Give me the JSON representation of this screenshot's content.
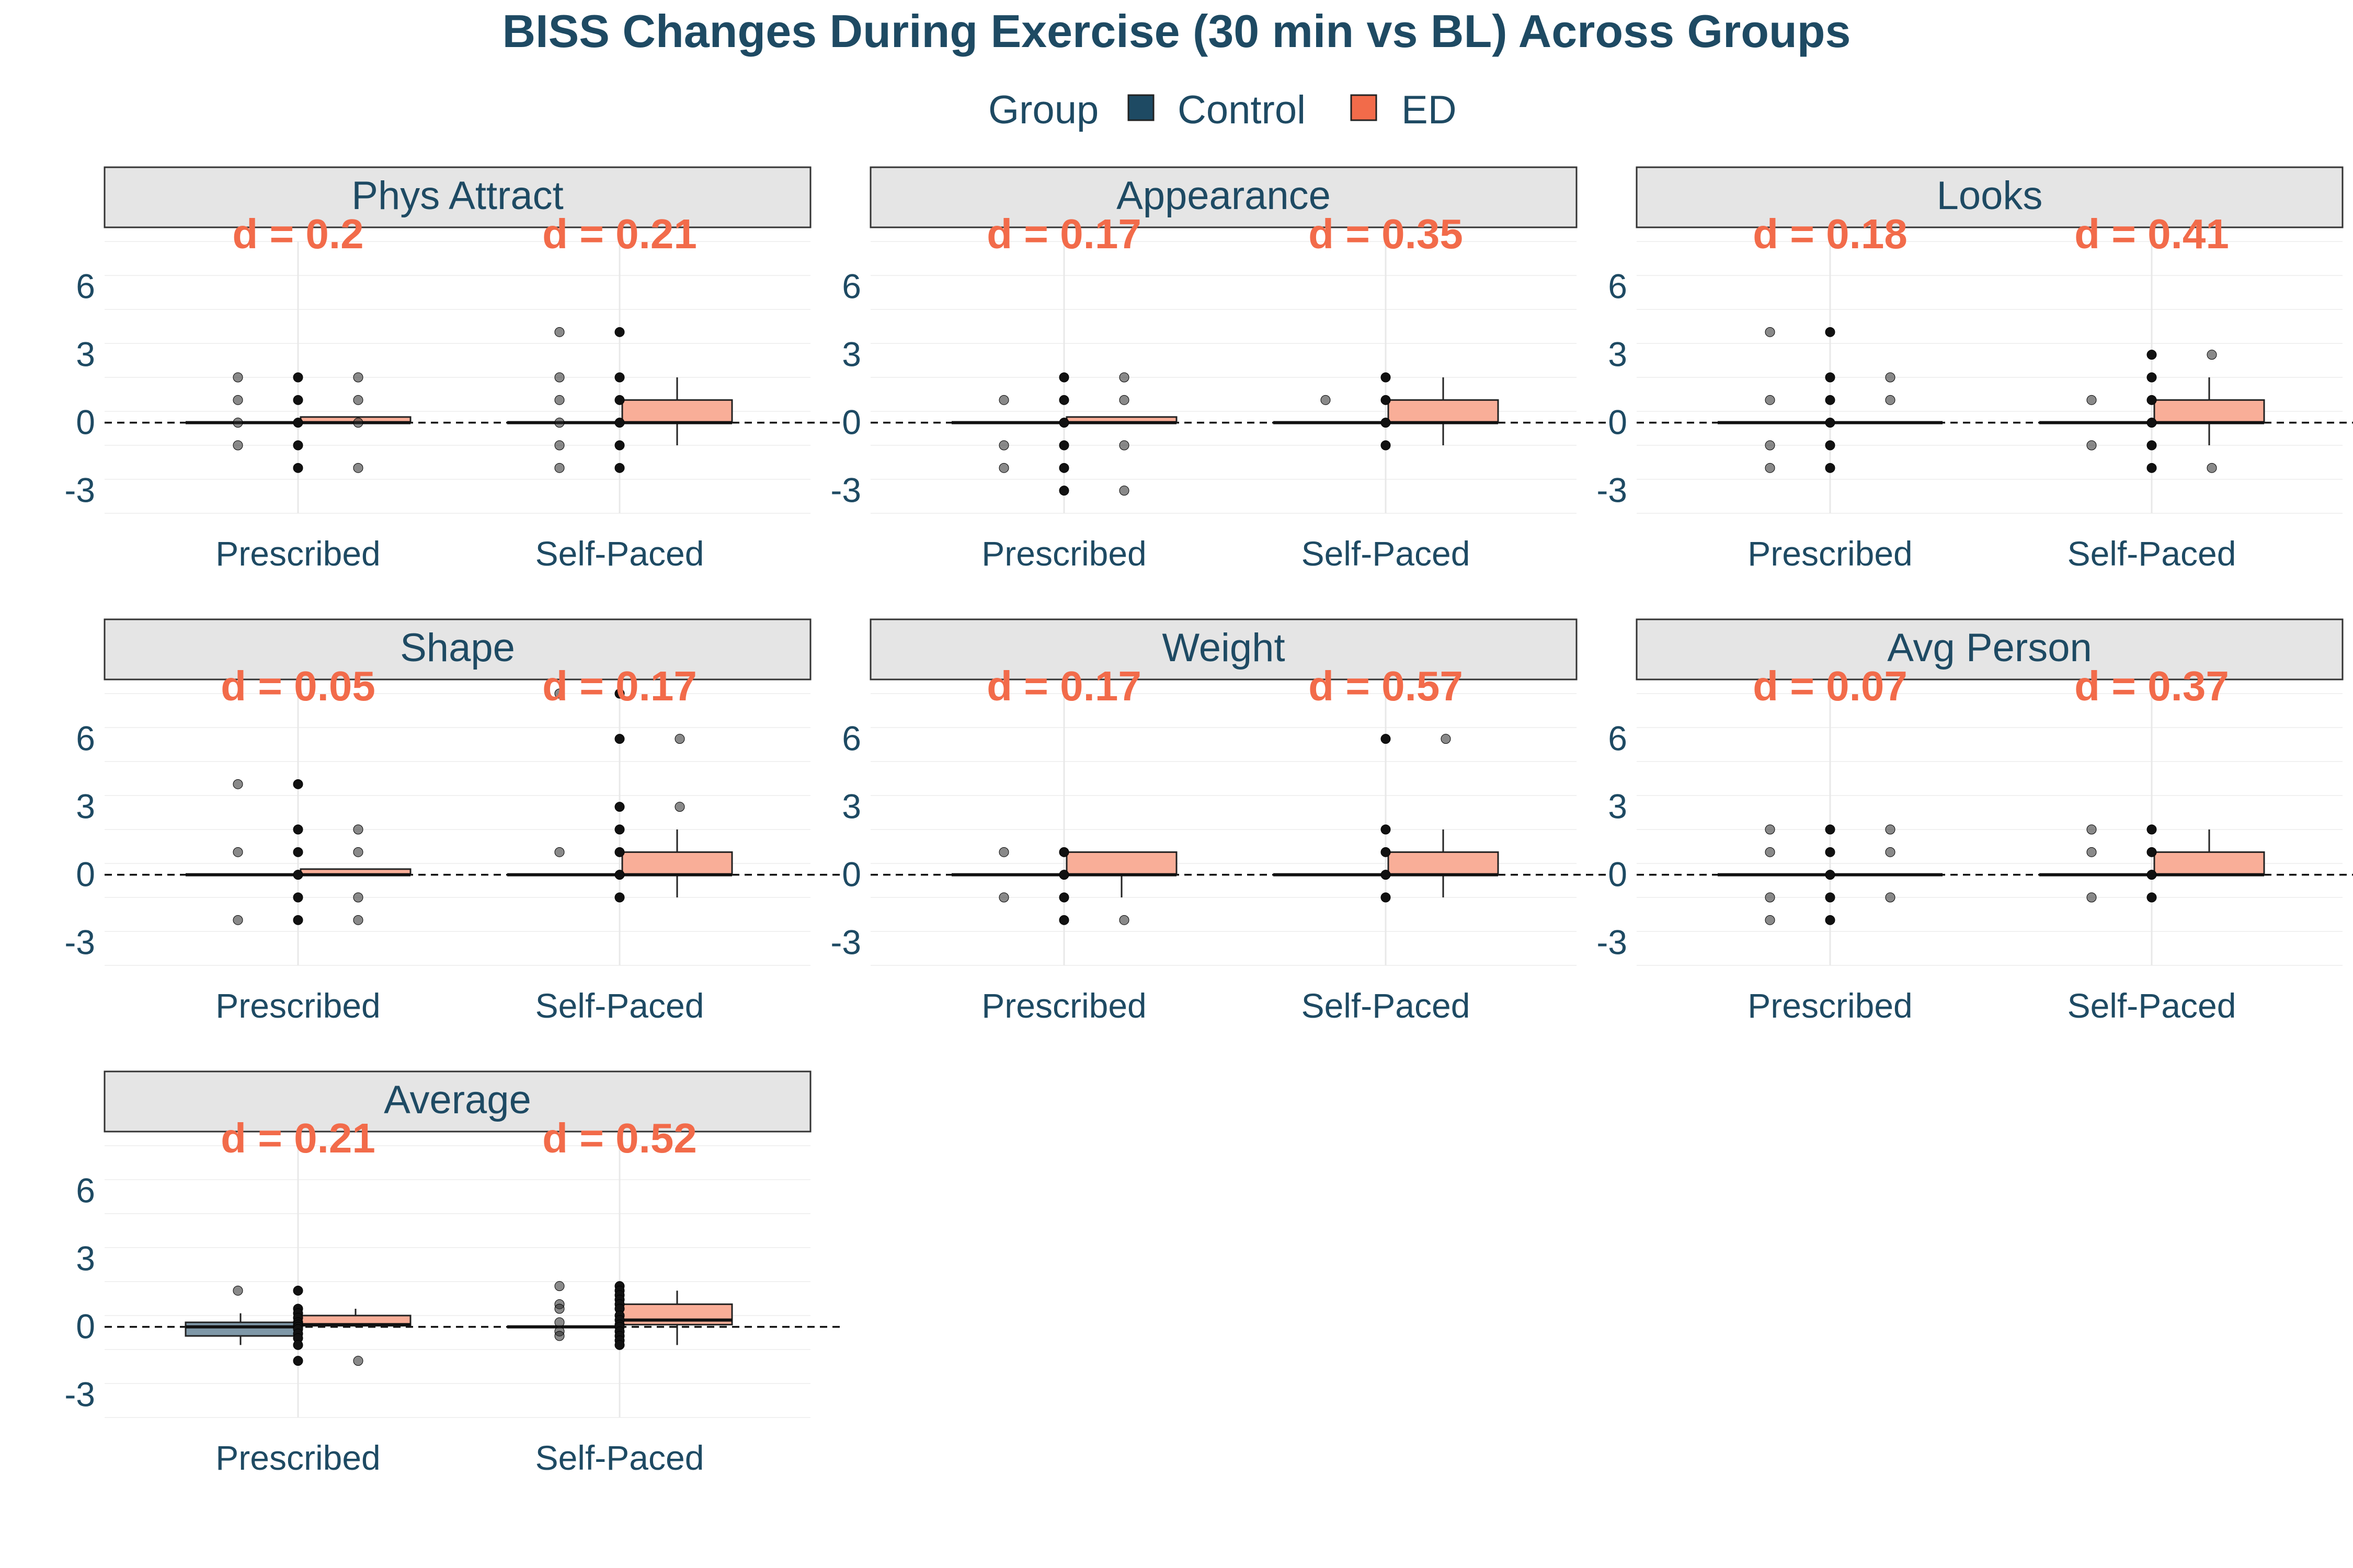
{
  "chart_data": {
    "type": "box",
    "title": "BISS Changes During Exercise (30 min vs BL) Across Groups",
    "legend": {
      "title": "Group",
      "position": "top",
      "items": [
        {
          "name": "Control",
          "color": "#1e4a63"
        },
        {
          "name": "ED",
          "color": "#f26b4a"
        }
      ]
    },
    "colors": {
      "control_fill": "#7f98a8",
      "ed_fill": "#f9ae98",
      "title": "#1e4a63",
      "annotation": "#f26b4a",
      "strip_bg": "#e5e5e5"
    },
    "y_ticks": [
      "6",
      "3",
      "0",
      "-3"
    ],
    "y_tick_values": [
      6,
      3,
      0,
      -3
    ],
    "ylim": [
      -4,
      8
    ],
    "reference_line": 0,
    "categories": [
      "Prescribed",
      "Self-Paced"
    ],
    "panels": [
      {
        "name": "Phys Attract",
        "effect_sizes": [
          "d = 0.2",
          "d = 0.21"
        ],
        "boxes": {
          "Prescribed": {
            "Control": {
              "q1": 0,
              "median": 0,
              "q3": 0,
              "low": 0,
              "high": 0
            },
            "ED": {
              "q1": 0,
              "median": 0,
              "q3": 0.25,
              "low": 0,
              "high": 0.25
            }
          },
          "Self-Paced": {
            "Control": {
              "q1": 0,
              "median": 0,
              "q3": 0,
              "low": 0,
              "high": 0
            },
            "ED": {
              "q1": 0,
              "median": 0,
              "q3": 1,
              "low": -1,
              "high": 2
            }
          }
        },
        "points": {
          "Prescribed": {
            "Control": [
              2,
              1,
              0,
              -1
            ],
            "Center": [
              2,
              1,
              0,
              -1,
              -2
            ],
            "ED": [
              2,
              1,
              0,
              -2
            ]
          },
          "Self-Paced": {
            "Control": [
              4,
              2,
              1,
              0,
              -1,
              -2
            ],
            "Center": [
              4,
              2,
              1,
              0,
              -1,
              -2
            ],
            "ED": []
          }
        }
      },
      {
        "name": "Appearance",
        "effect_sizes": [
          "d = 0.17",
          "d = 0.35"
        ],
        "boxes": {
          "Prescribed": {
            "Control": {
              "q1": 0,
              "median": 0,
              "q3": 0,
              "low": 0,
              "high": 0
            },
            "ED": {
              "q1": 0,
              "median": 0,
              "q3": 0.25,
              "low": 0,
              "high": 0.25
            }
          },
          "Self-Paced": {
            "Control": {
              "q1": 0,
              "median": 0,
              "q3": 0,
              "low": 0,
              "high": 0
            },
            "ED": {
              "q1": 0,
              "median": 0,
              "q3": 1,
              "low": -1,
              "high": 2
            }
          }
        },
        "points": {
          "Prescribed": {
            "Control": [
              1,
              -1,
              -2
            ],
            "Center": [
              2,
              1,
              0,
              -1,
              -2,
              -3
            ],
            "ED": [
              2,
              1,
              -1,
              -3
            ]
          },
          "Self-Paced": {
            "Control": [
              1
            ],
            "Center": [
              2,
              1,
              0,
              -1
            ],
            "ED": []
          }
        }
      },
      {
        "name": "Looks",
        "effect_sizes": [
          "d = 0.18",
          "d = 0.41"
        ],
        "boxes": {
          "Prescribed": {
            "Control": {
              "q1": 0,
              "median": 0,
              "q3": 0,
              "low": 0,
              "high": 0
            },
            "ED": {
              "q1": 0,
              "median": 0,
              "q3": 0,
              "low": 0,
              "high": 0
            }
          },
          "Self-Paced": {
            "Control": {
              "q1": 0,
              "median": 0,
              "q3": 0,
              "low": 0,
              "high": 0
            },
            "ED": {
              "q1": 0,
              "median": 0,
              "q3": 1,
              "low": -1,
              "high": 2
            }
          }
        },
        "points": {
          "Prescribed": {
            "Control": [
              4,
              1,
              -1,
              -2
            ],
            "Center": [
              4,
              2,
              1,
              0,
              -1,
              -2
            ],
            "ED": [
              2,
              1
            ]
          },
          "Self-Paced": {
            "Control": [
              1,
              -1
            ],
            "Center": [
              3,
              2,
              1,
              0,
              -1,
              -2
            ],
            "ED": [
              3,
              -2
            ]
          }
        }
      },
      {
        "name": "Shape",
        "effect_sizes": [
          "d = 0.05",
          "d = 0.17"
        ],
        "boxes": {
          "Prescribed": {
            "Control": {
              "q1": 0,
              "median": 0,
              "q3": 0,
              "low": 0,
              "high": 0
            },
            "ED": {
              "q1": 0,
              "median": 0,
              "q3": 0.25,
              "low": 0,
              "high": 0.25
            }
          },
          "Self-Paced": {
            "Control": {
              "q1": 0,
              "median": 0,
              "q3": 0,
              "low": 0,
              "high": 0
            },
            "ED": {
              "q1": 0,
              "median": 0,
              "q3": 1,
              "low": -1,
              "high": 2
            }
          }
        },
        "points": {
          "Prescribed": {
            "Control": [
              4,
              1,
              -2
            ],
            "Center": [
              4,
              2,
              1,
              0,
              -1,
              -2
            ],
            "ED": [
              2,
              1,
              -1,
              -2
            ]
          },
          "Self-Paced": {
            "Control": [
              8,
              1
            ],
            "Center": [
              8,
              6,
              3,
              2,
              1,
              0,
              -1
            ],
            "ED": [
              6,
              3
            ]
          }
        }
      },
      {
        "name": "Weight",
        "effect_sizes": [
          "d = 0.17",
          "d = 0.57"
        ],
        "boxes": {
          "Prescribed": {
            "Control": {
              "q1": 0,
              "median": 0,
              "q3": 0,
              "low": 0,
              "high": 0
            },
            "ED": {
              "q1": 0,
              "median": 0,
              "q3": 1,
              "low": -1,
              "high": 1
            }
          },
          "Self-Paced": {
            "Control": {
              "q1": 0,
              "median": 0,
              "q3": 0,
              "low": 0,
              "high": 0
            },
            "ED": {
              "q1": 0,
              "median": 0,
              "q3": 1,
              "low": -1,
              "high": 2
            }
          }
        },
        "points": {
          "Prescribed": {
            "Control": [
              1,
              -1
            ],
            "Center": [
              1,
              0,
              -1,
              -2
            ],
            "ED": [
              -2
            ]
          },
          "Self-Paced": {
            "Control": [],
            "Center": [
              6,
              2,
              1,
              0,
              -1
            ],
            "ED": [
              6
            ]
          }
        }
      },
      {
        "name": "Avg Person",
        "effect_sizes": [
          "d = 0.07",
          "d = 0.37"
        ],
        "boxes": {
          "Prescribed": {
            "Control": {
              "q1": 0,
              "median": 0,
              "q3": 0,
              "low": 0,
              "high": 0
            },
            "ED": {
              "q1": 0,
              "median": 0,
              "q3": 0,
              "low": 0,
              "high": 0
            }
          },
          "Self-Paced": {
            "Control": {
              "q1": 0,
              "median": 0,
              "q3": 0,
              "low": 0,
              "high": 0
            },
            "ED": {
              "q1": 0,
              "median": 0,
              "q3": 1,
              "low": 0,
              "high": 2
            }
          }
        },
        "points": {
          "Prescribed": {
            "Control": [
              2,
              1,
              -1,
              -2
            ],
            "Center": [
              2,
              1,
              0,
              -1,
              -2
            ],
            "ED": [
              2,
              1,
              -1
            ]
          },
          "Self-Paced": {
            "Control": [
              2,
              1,
              -1
            ],
            "Center": [
              2,
              1,
              0,
              -1
            ],
            "ED": []
          }
        }
      },
      {
        "name": "Average",
        "effect_sizes": [
          "d = 0.21",
          "d = 0.52"
        ],
        "boxes": {
          "Prescribed": {
            "Control": {
              "q1": -0.4,
              "median": 0,
              "q3": 0.2,
              "low": -0.8,
              "high": 0.6
            },
            "ED": {
              "q1": 0.05,
              "median": 0.1,
              "q3": 0.5,
              "low": 0,
              "high": 0.8
            }
          },
          "Self-Paced": {
            "Control": {
              "q1": 0,
              "median": 0,
              "q3": 0,
              "low": 0,
              "high": 0
            },
            "ED": {
              "q1": 0.1,
              "median": 0.3,
              "q3": 1,
              "low": -0.8,
              "high": 1.6
            }
          }
        },
        "points": {
          "Prescribed": {
            "Control": [
              1.6
            ],
            "Center": [
              1.6,
              0.8,
              0.6,
              0.4,
              0.2,
              0.1,
              0,
              -0.1,
              -0.3,
              -0.5,
              -0.8,
              -1.5
            ],
            "ED": [
              -1.5
            ]
          },
          "Self-Paced": {
            "Control": [
              1.8,
              1,
              0.8,
              0.2,
              -0.2,
              -0.4
            ],
            "Center": [
              1.8,
              1.6,
              1.4,
              1.2,
              1,
              0.8,
              0.5,
              0.3,
              0.1,
              0,
              -0.2,
              -0.4,
              -0.6,
              -0.8
            ],
            "ED": []
          }
        }
      }
    ]
  }
}
